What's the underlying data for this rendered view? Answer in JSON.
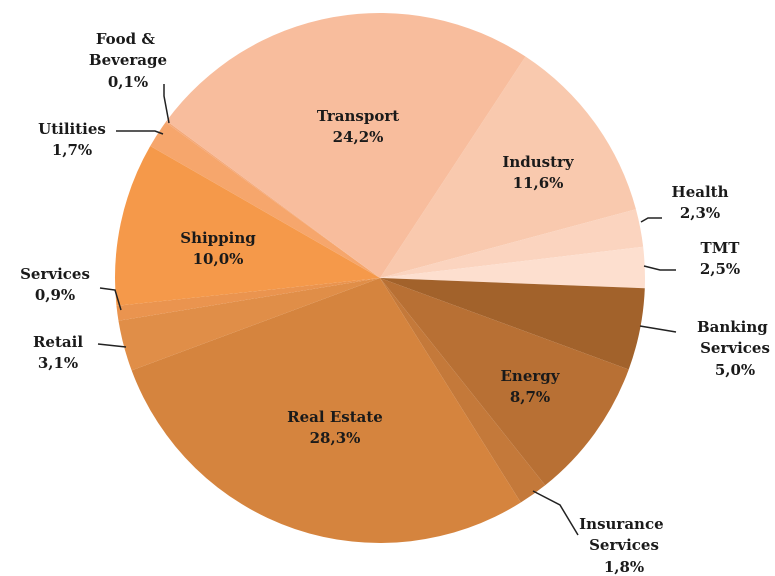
{
  "chart_data": {
    "type": "pie",
    "categories": [
      "Industry",
      "Health",
      "TMT",
      "Banking Services",
      "Energy",
      "Insurance Services",
      "Real Estate",
      "Retail",
      "Services",
      "Shipping",
      "Utilities",
      "Food & Beverage",
      "Transport"
    ],
    "values": [
      11.6,
      2.3,
      2.5,
      5.0,
      8.7,
      1.8,
      28.3,
      3.1,
      0.9,
      10.0,
      1.7,
      0.1,
      24.2
    ],
    "value_labels": [
      "11,6%",
      "2,3%",
      "2,5%",
      "5,0%",
      "8,7%",
      "1,8%",
      "28,3%",
      "3,1%",
      "0,9%",
      "10,0%",
      "1,7%",
      "0,1%",
      "24,2%"
    ],
    "colors": [
      "#f9c9ae",
      "#fbd4bf",
      "#fddfcf",
      "#a2622b",
      "#b87034",
      "#c4793a",
      "#d5843e",
      "#e08e48",
      "#ea944f",
      "#f5994a",
      "#f6a66c",
      "#f4a878",
      "#f8bd9d"
    ]
  }
}
